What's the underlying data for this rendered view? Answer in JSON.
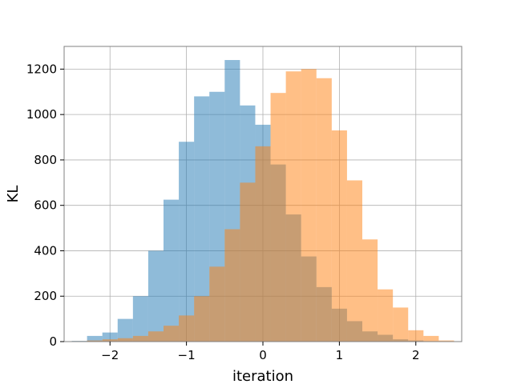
{
  "chart_data": {
    "type": "histogram",
    "title": "",
    "xlabel": "iteration",
    "ylabel": "KL",
    "xlim": [
      -2.6,
      2.6
    ],
    "ylim": [
      0,
      1300
    ],
    "xticks": [
      -2,
      -1,
      0,
      1,
      2
    ],
    "xtick_labels": [
      "−2",
      "−1",
      "0",
      "1",
      "2"
    ],
    "yticks": [
      0,
      200,
      400,
      600,
      800,
      1000,
      1200
    ],
    "ytick_labels": [
      "0",
      "200",
      "400",
      "600",
      "800",
      "1000",
      "1200"
    ],
    "grid": true,
    "legend": false,
    "series": [
      {
        "color": "#1f77b4",
        "opacity": 0.5,
        "bin_edges": [
          -2.5,
          -2.3,
          -2.1,
          -1.9,
          -1.7,
          -1.5,
          -1.3,
          -1.1,
          -0.9,
          -0.7,
          -0.5,
          -0.3,
          -0.1,
          0.1,
          0.3,
          0.5,
          0.7,
          0.9,
          1.1,
          1.3,
          1.5,
          1.7,
          1.9,
          2.1,
          2.3,
          2.5
        ],
        "values": [
          3,
          25,
          40,
          100,
          200,
          400,
          625,
          880,
          1080,
          1100,
          1240,
          1040,
          955,
          780,
          560,
          375,
          240,
          145,
          90,
          45,
          30,
          10,
          5,
          2,
          1
        ]
      },
      {
        "color": "#ff7f0e",
        "opacity": 0.5,
        "bin_edges": [
          -2.5,
          -2.3,
          -2.1,
          -1.9,
          -1.7,
          -1.5,
          -1.3,
          -1.1,
          -0.9,
          -0.7,
          -0.5,
          -0.3,
          -0.1,
          0.1,
          0.3,
          0.5,
          0.7,
          0.9,
          1.1,
          1.3,
          1.5,
          1.7,
          1.9,
          2.1,
          2.3,
          2.5
        ],
        "values": [
          2,
          5,
          10,
          15,
          25,
          45,
          70,
          115,
          200,
          330,
          495,
          700,
          860,
          1095,
          1190,
          1200,
          1160,
          930,
          710,
          450,
          230,
          150,
          50,
          25,
          5
        ]
      }
    ]
  }
}
